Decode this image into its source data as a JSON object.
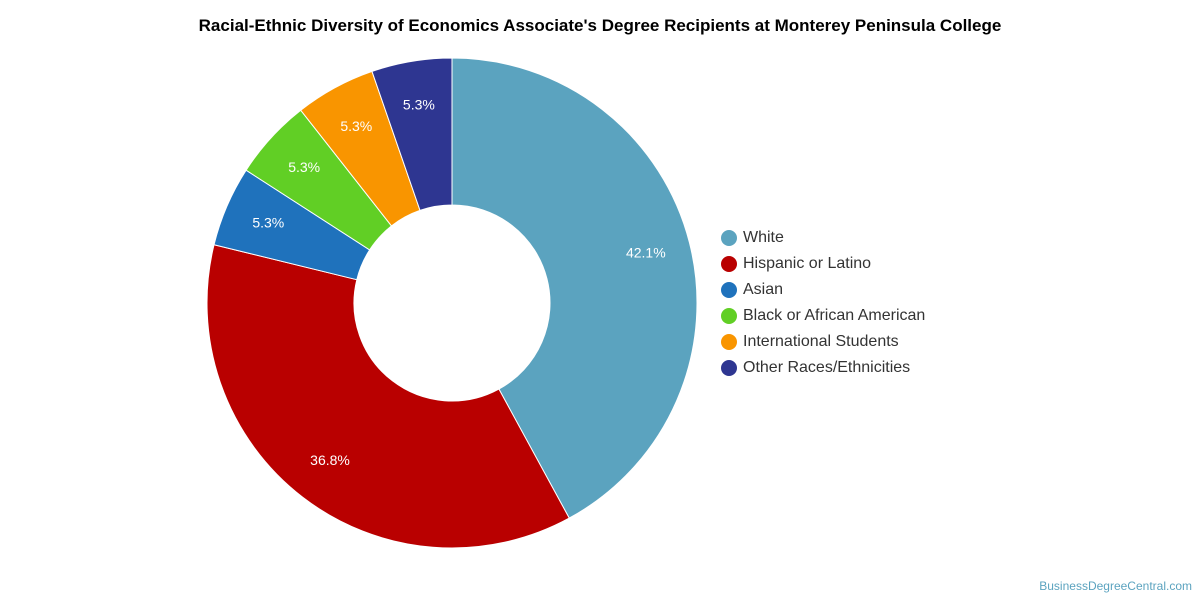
{
  "chart_data": {
    "type": "pie",
    "style": "donut",
    "title": "Racial-Ethnic Diversity of Economics Associate's Degree Recipients at Monterey Peninsula College",
    "legend_position": "right",
    "slices": [
      {
        "label": "White",
        "value": 42.1,
        "display": "42.1%",
        "color": "#5ba3bf"
      },
      {
        "label": "Hispanic or Latino",
        "value": 36.8,
        "display": "36.8%",
        "color": "#b90000"
      },
      {
        "label": "Asian",
        "value": 5.3,
        "display": "5.3%",
        "color": "#1f72bc"
      },
      {
        "label": "Black or African American",
        "value": 5.3,
        "display": "5.3%",
        "color": "#61cf25"
      },
      {
        "label": "International Students",
        "value": 5.3,
        "display": "5.3%",
        "color": "#f99500"
      },
      {
        "label": "Other Races/Ethnicities",
        "value": 5.3,
        "display": "5.3%",
        "color": "#2e3691"
      }
    ]
  },
  "credit": "BusinessDegreeCentral.com"
}
